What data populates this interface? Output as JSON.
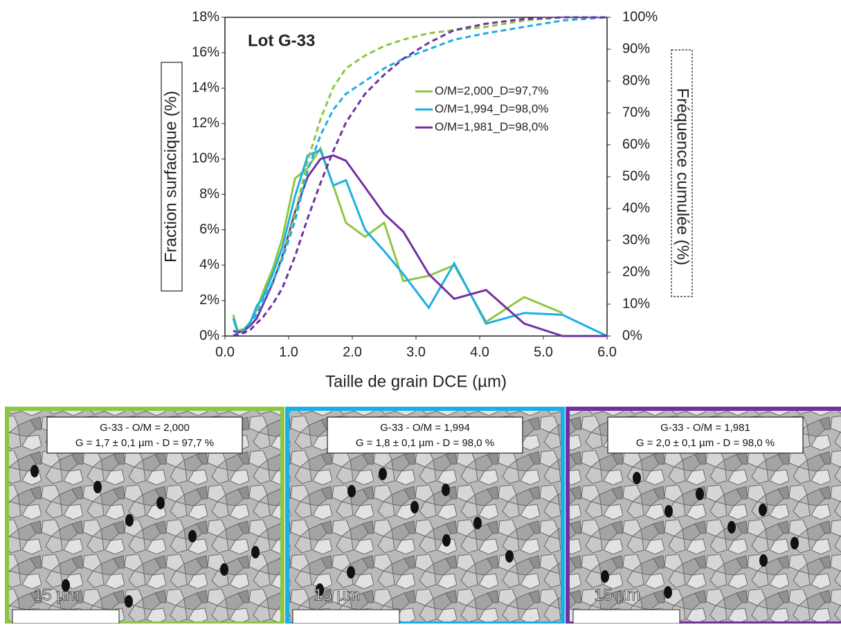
{
  "chart_data": {
    "type": "line",
    "annotations": [
      "Lot G-33"
    ],
    "xlabel": "Taille de grain DCE (µm)",
    "ylabel": "Fraction surfacique (%)",
    "y2label": "Fréquence cumulée (%)",
    "x": [
      0.13,
      0.2,
      0.3,
      0.4,
      0.5,
      0.6,
      0.75,
      0.9,
      1.1,
      1.3,
      1.5,
      1.7,
      1.9,
      2.2,
      2.5,
      2.8,
      3.2,
      3.6,
      4.1,
      4.7,
      5.3,
      6.0
    ],
    "series": [
      {
        "name": "O/M=2,000_D=97,7%",
        "color": "#8dc63f",
        "values": [
          1.2,
          0.3,
          0.4,
          0.8,
          1.5,
          2.5,
          3.8,
          5.5,
          8.9,
          9.5,
          10.6,
          8.5,
          6.4,
          5.6,
          6.4,
          3.1,
          3.4,
          4.0,
          0.8,
          2.2,
          1.3,
          null
        ]
      },
      {
        "name": "O/M=1,994_D=98,0%",
        "color": "#1aafe6",
        "values": [
          1.0,
          0.2,
          0.3,
          0.8,
          1.7,
          2.2,
          3.5,
          5.0,
          7.9,
          10.2,
          10.5,
          8.5,
          8.8,
          6.0,
          4.8,
          3.5,
          1.6,
          4.1,
          0.7,
          1.3,
          1.2,
          0
        ]
      },
      {
        "name": "O/M=1,981_D=98,0%",
        "color": "#7030a0",
        "values": [
          0.3,
          0.2,
          0.3,
          0.6,
          1.0,
          1.8,
          3.0,
          4.5,
          7.0,
          9.0,
          10.0,
          10.2,
          9.9,
          8.4,
          6.9,
          5.9,
          3.5,
          2.1,
          2.6,
          0.7,
          0,
          0
        ]
      },
      {
        "color": "#8dc63f",
        "axis": "y2",
        "dash": true,
        "values": [
          0,
          1,
          2,
          4,
          7,
          11,
          17,
          25,
          38,
          55,
          68,
          78,
          84,
          88,
          91,
          93,
          95,
          96,
          97,
          99,
          100,
          100
        ]
      },
      {
        "color": "#1aafe6",
        "axis": "y2",
        "dash": true,
        "values": [
          0,
          1,
          2,
          4,
          7,
          11,
          17,
          24,
          36,
          52,
          63,
          71,
          76,
          80,
          84,
          87,
          90,
          93,
          95,
          97,
          99,
          100
        ]
      },
      {
        "color": "#7030a0",
        "axis": "y2",
        "dash": true,
        "values": [
          0,
          0.5,
          1,
          2,
          4,
          6,
          10,
          15,
          25,
          37,
          48,
          58,
          67,
          76,
          82,
          87,
          92,
          96,
          98,
          99.5,
          100,
          100
        ]
      }
    ],
    "xlim": [
      0,
      6
    ],
    "xticks": [
      {
        "value": 0,
        "label": "0.0"
      },
      {
        "value": 1,
        "label": "1.0"
      },
      {
        "value": 2,
        "label": "2.0"
      },
      {
        "value": 3,
        "label": "3.0"
      },
      {
        "value": 4,
        "label": "4.0"
      },
      {
        "value": 5,
        "label": "5.0"
      },
      {
        "value": 6,
        "label": "6.0"
      }
    ],
    "ylim": [
      0,
      18
    ],
    "yticks": [
      {
        "value": 0,
        "label": "0%"
      },
      {
        "value": 2,
        "label": "2%"
      },
      {
        "value": 4,
        "label": "4%"
      },
      {
        "value": 6,
        "label": "6%"
      },
      {
        "value": 8,
        "label": "8%"
      },
      {
        "value": 10,
        "label": "10%"
      },
      {
        "value": 12,
        "label": "12%"
      },
      {
        "value": 14,
        "label": "14%"
      },
      {
        "value": 16,
        "label": "16%"
      },
      {
        "value": 18,
        "label": "18%"
      }
    ],
    "y2lim": [
      0,
      100
    ],
    "y2ticks": [
      {
        "value": 0,
        "label": "0%"
      },
      {
        "value": 10,
        "label": "10%"
      },
      {
        "value": 20,
        "label": "20%"
      },
      {
        "value": 30,
        "label": "30%"
      },
      {
        "value": 40,
        "label": "40%"
      },
      {
        "value": 50,
        "label": "50%"
      },
      {
        "value": 60,
        "label": "60%"
      },
      {
        "value": 70,
        "label": "70%"
      },
      {
        "value": 80,
        "label": "80%"
      },
      {
        "value": 90,
        "label": "90%"
      },
      {
        "value": 100,
        "label": "100%"
      }
    ],
    "grid": false,
    "legend": "upper right"
  },
  "panels": [
    {
      "color": "#8dc63f",
      "line1": "G-33 - O/M = 2,000",
      "line2": "G = 1,7 ± 0,1 µm - D = 97,7 %",
      "scale": "15 µm"
    },
    {
      "color": "#1aafe6",
      "line1": "G-33 - O/M = 1,994",
      "line2": "G = 1,8 ± 0,1 µm - D = 98,0 %",
      "scale": "15 µm"
    },
    {
      "color": "#7030a0",
      "line1": "G-33 - O/M = 1,981",
      "line2": "G = 2,0 ± 0,1 µm - D = 98,0 %",
      "scale": "15 µm"
    }
  ]
}
